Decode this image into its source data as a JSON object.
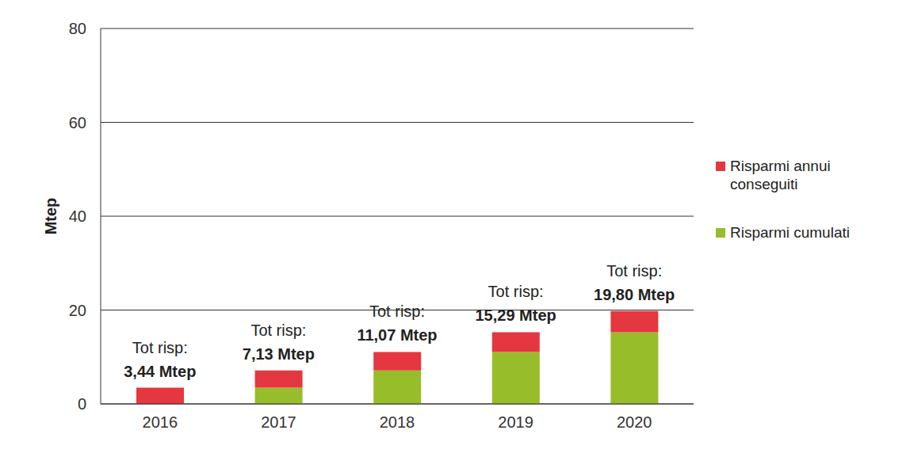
{
  "chart_data": {
    "type": "bar",
    "stacked": true,
    "y_label": "Mtep",
    "categories": [
      "2016",
      "2017",
      "2018",
      "2019",
      "2020"
    ],
    "series": [
      {
        "name": "Risparmi cumulati",
        "color": "#97bd2b",
        "values": [
          0,
          3.44,
          7.13,
          11.07,
          15.29
        ]
      },
      {
        "name": "Risparmi annui conseguiti",
        "color": "#e5373f",
        "values": [
          3.44,
          3.69,
          3.94,
          4.22,
          4.51
        ]
      }
    ],
    "ylim": [
      0,
      80
    ],
    "yticks": [
      0,
      20,
      40,
      60,
      80
    ],
    "grid": true,
    "legend": "right",
    "annotations": [
      {
        "category": "2016",
        "label": "Tot risp:",
        "value": 3.44,
        "value_label": "3,44 Mtep"
      },
      {
        "category": "2017",
        "label": "Tot risp:",
        "value": 7.13,
        "value_label": "7,13 Mtep"
      },
      {
        "category": "2018",
        "label": "Tot risp:",
        "value": 11.07,
        "value_label": "11,07 Mtep"
      },
      {
        "category": "2019",
        "label": "Tot risp:",
        "value": 15.29,
        "value_label": "15,29 Mtep"
      },
      {
        "category": "2020",
        "label": "Tot risp:",
        "value": 19.8,
        "value_label": "19,80 Mtep"
      }
    ]
  }
}
